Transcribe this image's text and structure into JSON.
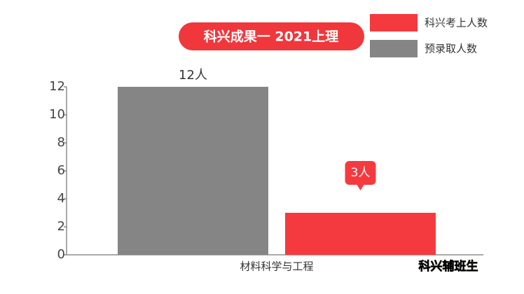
{
  "chart_data": {
    "type": "bar",
    "title": "科兴成果一 2021上理",
    "categories": [
      "材料科学与工程"
    ],
    "series": [
      {
        "name": "预录取人数",
        "color": "#858585",
        "values": [
          12
        ],
        "value_labels": [
          "12人"
        ]
      },
      {
        "name": "科兴考上人数",
        "color": "#f53a3f",
        "values": [
          3
        ],
        "value_labels": [
          "3人"
        ]
      }
    ],
    "ylim": [
      0,
      12
    ],
    "yticks": [
      0,
      2,
      4,
      6,
      8,
      10,
      12
    ],
    "watermark": "科兴辅班生"
  }
}
